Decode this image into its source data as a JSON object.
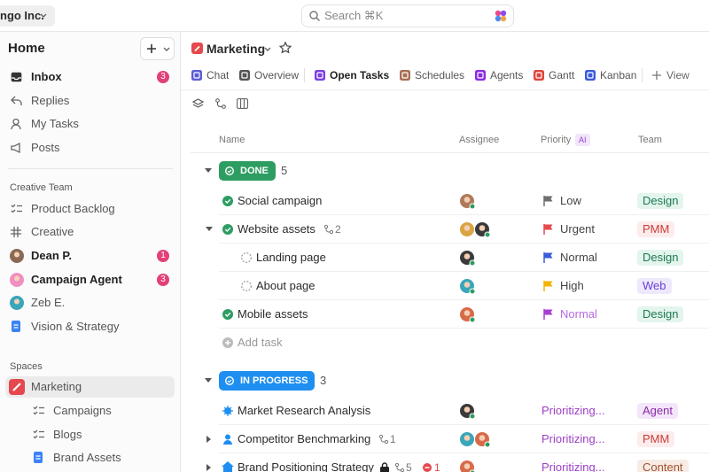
{
  "topbar": {
    "workspace": "ngo Inc.",
    "search": "Search ⌘K"
  },
  "sidebar": {
    "home": "Home",
    "items": [
      {
        "label": "Inbox",
        "badge": 3,
        "bold": true,
        "icon": "inbox"
      },
      {
        "label": "Replies",
        "icon": "reply"
      },
      {
        "label": "My Tasks",
        "icon": "user"
      },
      {
        "label": "Posts",
        "icon": "post"
      }
    ],
    "sections": [
      {
        "title": "Creative Team",
        "items": [
          {
            "label": "Product Backlog",
            "icon": "list"
          },
          {
            "label": "Creative",
            "icon": "hash"
          },
          {
            "label": "Dean P.",
            "badge": 1,
            "bold": true,
            "icon": "avatar",
            "color": "#8a6a55"
          },
          {
            "label": "Campaign Agent",
            "badge": 3,
            "bold": true,
            "icon": "avatar",
            "color": "#f08fc0"
          },
          {
            "label": "Zeb E.",
            "icon": "avatar",
            "color": "#3aa6b9"
          },
          {
            "label": "Vision & Strategy",
            "icon": "doc"
          }
        ]
      },
      {
        "title": "Spaces",
        "items": [
          {
            "label": "Marketing",
            "icon": "space",
            "active": true
          },
          {
            "label": "Campaigns",
            "icon": "list",
            "indent": true
          },
          {
            "label": "Blogs",
            "icon": "list",
            "indent": true
          },
          {
            "label": "Brand Assets",
            "icon": "doc",
            "indent": true
          }
        ]
      }
    ]
  },
  "view": {
    "title": "Marketing",
    "tabs": [
      {
        "label": "Chat",
        "color": "#5b5bd6"
      },
      {
        "label": "Overview",
        "color": "#555555"
      },
      {
        "label": "Open Tasks",
        "color": "#7b3fe4",
        "active": true
      },
      {
        "label": "Schedules",
        "color": "#a86f55"
      },
      {
        "label": "Agents",
        "color": "#8a2be2"
      },
      {
        "label": "Gantt",
        "color": "#e0443c"
      },
      {
        "label": "Kanban",
        "color": "#3b5bdb"
      }
    ],
    "add_view": "View"
  },
  "table": {
    "columns": [
      "Name",
      "Assignee",
      "Priority",
      "Team"
    ],
    "ai_badge": "AI",
    "groups": [
      {
        "status": "DONE",
        "count": 5,
        "color": "#2e9d62",
        "add_task": "Add task",
        "tasks": [
          {
            "name": "Social campaign",
            "done": true,
            "assignees": 1,
            "priority": "Low",
            "flag": "#6f6f6f",
            "team": "Design",
            "team_color": "#1d7a55",
            "team_bg": "#e3f5ec"
          },
          {
            "name": "Website assets",
            "done": true,
            "expanded": true,
            "subtasks": 2,
            "assignees": 2,
            "priority": "Urgent",
            "flag": "#e5484d",
            "team": "PMM",
            "team_color": "#c93c37",
            "team_bg": "#fdecec"
          },
          {
            "name": "Landing page",
            "level": 1,
            "assignees": 1,
            "priority": "Normal",
            "flag": "#3b5bdb",
            "team": "Design",
            "team_color": "#1d7a55",
            "team_bg": "#e3f5ec"
          },
          {
            "name": "About page",
            "level": 1,
            "assignees": 1,
            "priority": "High",
            "flag": "#f2b400",
            "team": "Web",
            "team_color": "#6b3fd4",
            "team_bg": "#eee8fd"
          },
          {
            "name": "Mobile assets",
            "done": true,
            "assignees": 1,
            "priority": "Normal",
            "flag": "#a63fd0",
            "faded": true,
            "team": "Design",
            "team_color": "#1d7a55",
            "team_bg": "#e3f5ec"
          }
        ]
      },
      {
        "status": "IN PROGRESS",
        "count": 3,
        "color": "#1e8ff0",
        "tasks": [
          {
            "name": "Market Research Analysis",
            "assignees": 1,
            "priority": "Prioritizing...",
            "team": "Agent",
            "team_color": "#8a2aa8",
            "team_bg": "#f4e6fa"
          },
          {
            "name": "Competitor Benchmarking",
            "collapsed": true,
            "subtasks": 1,
            "assignees": 2,
            "priority": "Prioritizing...",
            "team": "PMM",
            "team_color": "#c93c37",
            "team_bg": "#fdecec"
          },
          {
            "name": "Brand Positioning Strategy",
            "collapsed": true,
            "locked": true,
            "subtasks": 5,
            "blocked": 1,
            "assignees": 1,
            "priority": "Prioritizing...",
            "team": "Content",
            "team_color": "#a0522d",
            "team_bg": "#f7ebe5"
          }
        ]
      }
    ]
  }
}
